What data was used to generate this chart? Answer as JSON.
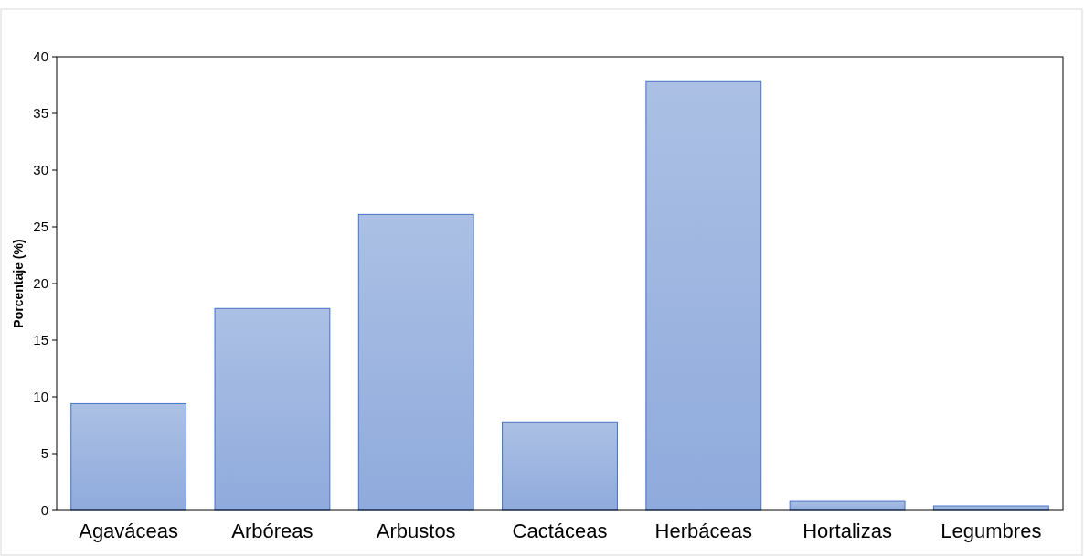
{
  "chart_data": {
    "type": "bar",
    "ylabel": "Porcentaje (%)",
    "categories": [
      "Agaváceas",
      "Arbóreas",
      "Arbustos",
      "Cactáceas",
      "Herbáceas",
      "Hortalizas",
      "Legumbres"
    ],
    "values": [
      9.4,
      17.8,
      26.1,
      7.8,
      37.8,
      0.8,
      0.4
    ],
    "color": "#4472c4",
    "ylim": [
      0,
      40
    ],
    "yticks": [
      0,
      5,
      10,
      15,
      20,
      25,
      30,
      35,
      40
    ],
    "grid": false
  }
}
